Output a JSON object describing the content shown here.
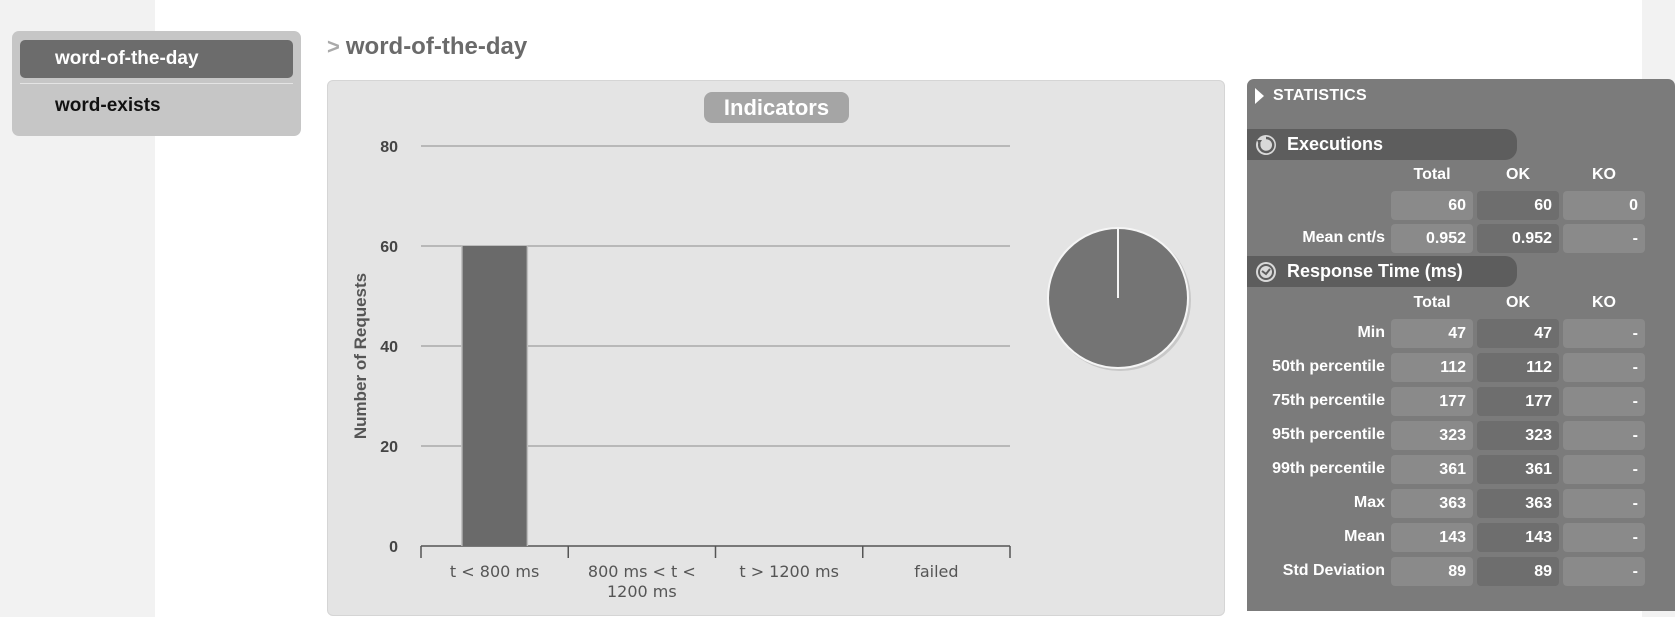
{
  "menu": {
    "items": [
      {
        "label": "word-of-the-day",
        "active": true
      },
      {
        "label": "word-exists",
        "active": false
      }
    ]
  },
  "page": {
    "chevron": ">",
    "title": "word-of-the-day"
  },
  "chart": {
    "title": "Indicators"
  },
  "chart_data": {
    "type": "bar",
    "categories": [
      "t < 800 ms",
      "800 ms < t < 1200 ms",
      "t > 1200 ms",
      "failed"
    ],
    "category_lines": [
      [
        "t < 800 ms"
      ],
      [
        "800 ms < t <",
        "1200 ms"
      ],
      [
        "t > 1200 ms"
      ],
      [
        "failed"
      ]
    ],
    "values": [
      60,
      0,
      0,
      0
    ],
    "ylabel": "Number of Requests",
    "ylim": [
      0,
      80
    ],
    "yticks": [
      0,
      20,
      40,
      60,
      80
    ],
    "grid": true,
    "pie": {
      "slices": [
        {
          "label": "t < 800 ms",
          "value": 60
        }
      ]
    },
    "colors": {
      "bar": "#6a6a6a",
      "pie": "#747474",
      "grid": "#8c8c8c"
    }
  },
  "stats": {
    "heading": "STATISTICS",
    "executions": {
      "title": "Executions",
      "cols": [
        "Total",
        "OK",
        "KO"
      ],
      "rows": [
        {
          "label": "",
          "total": "60",
          "ok": "60",
          "ko": "0"
        },
        {
          "label": "Mean cnt/s",
          "total": "0.952",
          "ok": "0.952",
          "ko": "-"
        }
      ]
    },
    "response": {
      "title": "Response Time (ms)",
      "cols": [
        "Total",
        "OK",
        "KO"
      ],
      "rows": [
        {
          "label": "Min",
          "total": "47",
          "ok": "47",
          "ko": "-"
        },
        {
          "label": "50th percentile",
          "total": "112",
          "ok": "112",
          "ko": "-"
        },
        {
          "label": "75th percentile",
          "total": "177",
          "ok": "177",
          "ko": "-"
        },
        {
          "label": "95th percentile",
          "total": "323",
          "ok": "323",
          "ko": "-"
        },
        {
          "label": "99th percentile",
          "total": "361",
          "ok": "361",
          "ko": "-"
        },
        {
          "label": "Max",
          "total": "363",
          "ok": "363",
          "ko": "-"
        },
        {
          "label": "Mean",
          "total": "143",
          "ok": "143",
          "ko": "-"
        },
        {
          "label": "Std Deviation",
          "total": "89",
          "ok": "89",
          "ko": "-"
        }
      ]
    }
  }
}
